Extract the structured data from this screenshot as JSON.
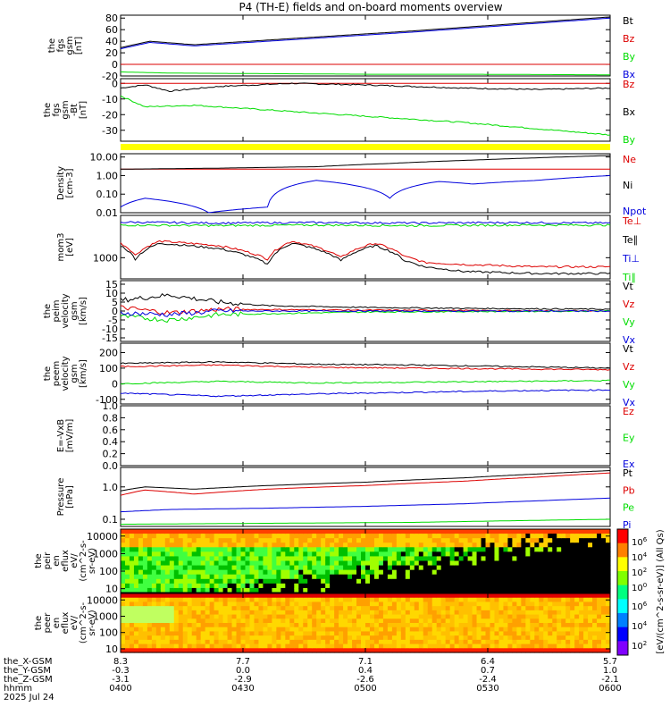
{
  "title": "P4 (TH-E) fields and on-board moments overview",
  "colors": {
    "black": "#000000",
    "red": "#dd0000",
    "green": "#00dd00",
    "blue": "#0000dd",
    "yellow": "#ffff00"
  },
  "chart_data": [
    {
      "type": "line",
      "panel": "fgs_gsm",
      "ylabel": [
        "the",
        "fgs",
        "gsm",
        "[nT]"
      ],
      "ylim": [
        -20,
        85
      ],
      "yticks": [
        "80",
        "60",
        "40",
        "20",
        "0",
        "-20"
      ],
      "series": [
        {
          "name": "Bt",
          "color": "black",
          "x": [
            0,
            0.06,
            0.15,
            0.3,
            0.45,
            0.6,
            0.8,
            1.0
          ],
          "y": [
            29,
            40,
            34,
            42,
            50,
            58,
            70,
            82
          ]
        },
        {
          "name": "Bz",
          "color": "red",
          "x": [
            0,
            1
          ],
          "y": [
            0,
            0
          ]
        },
        {
          "name": "By",
          "color": "green",
          "x": [
            0,
            0.1,
            0.3,
            0.5,
            0.7,
            1.0
          ],
          "y": [
            -13,
            -15,
            -16,
            -17,
            -17,
            -18
          ]
        },
        {
          "name": "Bx",
          "color": "blue",
          "x": [
            0,
            0.06,
            0.15,
            0.3,
            0.45,
            0.6,
            0.8,
            1.0
          ],
          "y": [
            27,
            38,
            32,
            40,
            48,
            56,
            68,
            80
          ]
        }
      ]
    },
    {
      "type": "line",
      "panel": "fgs_gsm_zoom",
      "ylabel": [
        "the",
        "fgs",
        "gsm",
        "-Bt",
        "[nT]"
      ],
      "ylim": [
        -37,
        3
      ],
      "yticks": [
        "0",
        "-10",
        "-20",
        "-30"
      ],
      "series": [
        {
          "name": "Bz",
          "color": "red",
          "x": [
            0,
            1
          ],
          "y": [
            0,
            0
          ]
        },
        {
          "name": "Bx",
          "color": "black",
          "x": [
            0,
            0.05,
            0.1,
            0.2,
            0.35,
            0.5,
            0.7,
            0.85,
            1.0
          ],
          "y": [
            -3,
            -1,
            -5,
            -2,
            0,
            -1,
            -3,
            -4,
            -3
          ]
        },
        {
          "name": "By",
          "color": "green",
          "x": [
            0,
            0.05,
            0.15,
            0.3,
            0.5,
            0.7,
            0.85,
            1.0
          ],
          "y": [
            -8,
            -15,
            -14,
            -17,
            -21,
            -25,
            -29,
            -33
          ]
        }
      ]
    },
    {
      "type": "line",
      "panel": "density",
      "ylabel": [
        "Density",
        "[cm-3]"
      ],
      "scale": "log",
      "ylim": [
        0.01,
        15
      ],
      "yticks": [
        "10.00",
        "1.00",
        "0.10",
        "0.01"
      ],
      "series": [
        {
          "name": "Ne",
          "color": "red",
          "x": [
            0,
            1
          ],
          "y": [
            2.2,
            2.2
          ]
        },
        {
          "name": "Ni",
          "color": "black",
          "x": [
            0,
            0.2,
            0.4,
            0.55,
            0.7,
            0.85,
            1.0
          ],
          "y": [
            2.2,
            2.5,
            3.0,
            4.5,
            6.5,
            9.0,
            12.0
          ]
        },
        {
          "name": "Npot",
          "color": "blue",
          "x": [
            0,
            0.05,
            0.18,
            0.3,
            0.4,
            0.55,
            0.65,
            0.72,
            0.85,
            1.0
          ],
          "y": [
            0.02,
            0.06,
            0.01,
            0.02,
            0.55,
            0.06,
            0.48,
            0.35,
            0.55,
            1.0
          ]
        }
      ]
    },
    {
      "type": "line",
      "panel": "moms_t3",
      "ylabel": [
        "mom3",
        "[eV]"
      ],
      "scale": "log",
      "ylim": [
        200,
        25000
      ],
      "yticks": [
        "1000"
      ],
      "series": [
        {
          "name": "Te⊥",
          "color": "red",
          "x": [
            0,
            0.03,
            0.08,
            0.2,
            0.3,
            0.35,
            0.45,
            0.52,
            0.58,
            0.62,
            0.7,
            0.85,
            1.0
          ],
          "y": [
            3000,
            1200,
            3500,
            2500,
            900,
            3500,
            1000,
            3000,
            1100,
            700,
            600,
            500,
            500
          ]
        },
        {
          "name": "Te∥",
          "color": "black",
          "x": [
            0,
            0.03,
            0.08,
            0.2,
            0.3,
            0.35,
            0.45,
            0.52,
            0.58,
            0.62,
            0.7,
            0.85,
            1.0
          ],
          "y": [
            2500,
            900,
            3000,
            2000,
            600,
            3000,
            800,
            2500,
            800,
            500,
            350,
            300,
            300
          ]
        },
        {
          "name": "Ti⊥",
          "color": "blue",
          "x": [
            0,
            0.2,
            0.4,
            0.6,
            0.8,
            1.0
          ],
          "y": [
            15000,
            14000,
            14500,
            14000,
            14500,
            14000
          ]
        },
        {
          "name": "Ti∥",
          "color": "green",
          "x": [
            0,
            0.2,
            0.4,
            0.6,
            0.8,
            1.0
          ],
          "y": [
            12000,
            11500,
            12000,
            11500,
            12000,
            12000
          ]
        }
      ]
    },
    {
      "type": "line",
      "panel": "peim_velocity",
      "ylabel": [
        "the",
        "peim",
        "velocity",
        "gsm",
        "[km/s]"
      ],
      "ylim": [
        -17,
        17
      ],
      "yticks": [
        "15",
        "10",
        "5",
        "0",
        "-5",
        "-10",
        "-15"
      ],
      "series": [
        {
          "name": "Vt",
          "color": "black",
          "x": [
            0,
            0.1,
            0.2,
            0.3,
            0.5,
            0.7,
            1.0
          ],
          "y": [
            6,
            9,
            5,
            3,
            2,
            1.5,
            1
          ]
        },
        {
          "name": "Vz",
          "color": "red",
          "x": [
            0,
            0.1,
            0.2,
            0.5,
            1.0
          ],
          "y": [
            2,
            -1,
            1,
            0.5,
            0
          ]
        },
        {
          "name": "Vy",
          "color": "green",
          "x": [
            0,
            0.1,
            0.2,
            0.5,
            1.0
          ],
          "y": [
            -3,
            -5,
            -2,
            -0.5,
            0
          ]
        },
        {
          "name": "Vx",
          "color": "blue",
          "x": [
            0,
            0.1,
            0.2,
            0.5,
            1.0
          ],
          "y": [
            -1,
            -2,
            0,
            0,
            0
          ]
        }
      ]
    },
    {
      "type": "line",
      "panel": "peem_velocity",
      "ylabel": [
        "the",
        "peem",
        "velocity",
        "gsm",
        "[km/s]"
      ],
      "ylim": [
        -130,
        260
      ],
      "yticks": [
        "200",
        "100",
        "0",
        "-100"
      ],
      "series": [
        {
          "name": "Vt",
          "color": "black",
          "x": [
            0,
            0.2,
            0.4,
            0.6,
            0.8,
            1.0
          ],
          "y": [
            130,
            140,
            125,
            120,
            110,
            100
          ]
        },
        {
          "name": "Vz",
          "color": "red",
          "x": [
            0,
            0.2,
            0.4,
            0.6,
            0.8,
            1.0
          ],
          "y": [
            110,
            120,
            105,
            100,
            95,
            90
          ]
        },
        {
          "name": "Vy",
          "color": "green",
          "x": [
            0,
            0.2,
            0.4,
            0.6,
            0.8,
            1.0
          ],
          "y": [
            0,
            15,
            5,
            10,
            15,
            20
          ]
        },
        {
          "name": "Vx",
          "color": "blue",
          "x": [
            0,
            0.2,
            0.4,
            0.6,
            0.8,
            1.0
          ],
          "y": [
            -60,
            -80,
            -65,
            -55,
            -45,
            -40
          ]
        }
      ]
    },
    {
      "type": "line",
      "panel": "efield",
      "ylabel": [
        "E=-VxB",
        "[mV/m]"
      ],
      "ylim": [
        0,
        1
      ],
      "yticks": [
        "1.0",
        "0.8",
        "0.6",
        "0.4",
        "0.2",
        "0.0"
      ],
      "series": [
        {
          "name": "Ez",
          "color": "red",
          "x": [],
          "y": []
        },
        {
          "name": "Ey",
          "color": "green",
          "x": [],
          "y": []
        },
        {
          "name": "Ex",
          "color": "blue",
          "x": [],
          "y": []
        }
      ]
    },
    {
      "type": "line",
      "panel": "pressure",
      "ylabel": [
        "Pressure",
        "[nPa]"
      ],
      "scale": "log",
      "ylim": [
        0.06,
        4
      ],
      "yticks": [
        "1.0",
        "0.1"
      ],
      "series": [
        {
          "name": "Pt",
          "color": "black",
          "x": [
            0,
            0.05,
            0.15,
            0.3,
            0.5,
            0.7,
            0.85,
            1.0
          ],
          "y": [
            0.75,
            1.0,
            0.85,
            1.1,
            1.4,
            1.9,
            2.5,
            3.2
          ]
        },
        {
          "name": "Pb",
          "color": "red",
          "x": [
            0,
            0.05,
            0.15,
            0.3,
            0.5,
            0.7,
            0.85,
            1.0
          ],
          "y": [
            0.55,
            0.8,
            0.6,
            0.85,
            1.1,
            1.5,
            2.0,
            2.7
          ]
        },
        {
          "name": "Pe",
          "color": "green",
          "x": [
            0,
            0.3,
            0.6,
            0.8,
            1.0
          ],
          "y": [
            0.07,
            0.075,
            0.08,
            0.09,
            0.1
          ]
        },
        {
          "name": "Pi",
          "color": "blue",
          "x": [
            0,
            0.1,
            0.3,
            0.5,
            0.7,
            0.85,
            1.0
          ],
          "y": [
            0.17,
            0.2,
            0.22,
            0.25,
            0.3,
            0.37,
            0.45
          ]
        }
      ]
    },
    {
      "type": "heatmap",
      "panel": "peir_eflux",
      "ylabel": [
        "the",
        "peir",
        "en",
        "eflux",
        "eV/",
        "(cm^2-s-",
        "sr-eV)"
      ],
      "scale": "log",
      "ylim": [
        6,
        25000
      ],
      "yticks": [
        "10000",
        "1000",
        "100",
        "10"
      ]
    },
    {
      "type": "heatmap",
      "panel": "peer_eflux",
      "ylabel": [
        "the",
        "peer",
        "en",
        "eflux",
        "eV/",
        "(cm^2-s-",
        "sr-eV)"
      ],
      "scale": "log",
      "ylim": [
        6,
        25000
      ],
      "yticks": [
        "10000",
        "1000",
        "100",
        "10"
      ]
    }
  ],
  "colorbar": {
    "label": "[eV/(cm^2-s-sr-eV)] (All Qs)",
    "ticks_top": [
      "10^6",
      "10^4",
      "10^2",
      "10^0"
    ],
    "ticks_bottom": [
      "10^6",
      "10^4",
      "10^2"
    ]
  },
  "xaxis": {
    "rows": [
      {
        "label": "the_X-GSM",
        "values": [
          "8.3",
          "7.7",
          "7.1",
          "6.4",
          "5.7"
        ]
      },
      {
        "label": "the_Y-GSM",
        "values": [
          "-0.3",
          "0.0",
          "0.4",
          "0.7",
          "1.0"
        ]
      },
      {
        "label": "the_Z-GSM",
        "values": [
          "-3.1",
          "-2.9",
          "-2.6",
          "-2.4",
          "-2.1"
        ]
      },
      {
        "label": "hhmm",
        "values": [
          "0400",
          "0430",
          "0500",
          "0530",
          "0600"
        ]
      }
    ],
    "date": "2025 Jul 24"
  }
}
